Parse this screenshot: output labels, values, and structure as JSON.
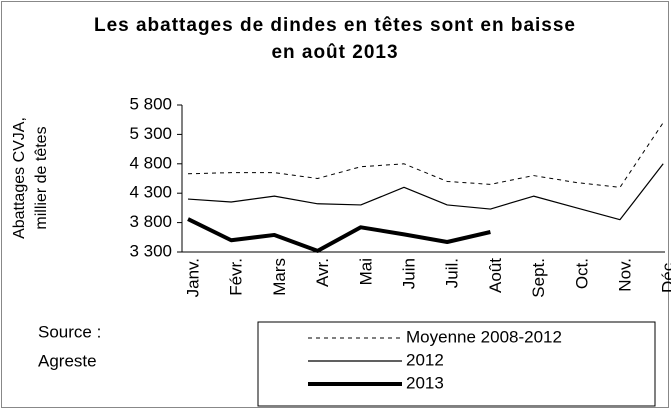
{
  "chart_data": {
    "type": "line",
    "title": "Les abattages de dindes en têtes sont en baisse en août 2013",
    "ylabel": [
      "Abattages CVJA,",
      "millier de têtes"
    ],
    "annotation": [
      "Source :",
      "Agreste"
    ],
    "categories": [
      "Janv.",
      "Févr.",
      "Mars",
      "Avr.",
      "Mai",
      "Juin",
      "Juil.",
      "Août",
      "Sept.",
      "Oct.",
      "Nov.",
      "Déc."
    ],
    "series": [
      {
        "name": "Moyenne 2008-2012",
        "color": "#000000",
        "line_style": "dashed",
        "values": [
          4630,
          4650,
          4650,
          4550,
          4750,
          4800,
          4500,
          4450,
          4600,
          4480,
          4400,
          5500
        ]
      },
      {
        "name": "2012",
        "color": "#000000",
        "line_style": "solid",
        "values": [
          4200,
          4150,
          4250,
          4120,
          4100,
          4400,
          4100,
          4030,
          4250,
          4050,
          3850,
          4800
        ]
      },
      {
        "name": "2013",
        "color": "#000000",
        "line_style": "bold",
        "values": [
          3860,
          3500,
          3590,
          3320,
          3720,
          3600,
          3470,
          3640,
          null,
          null,
          null,
          null
        ]
      }
    ],
    "ylim": [
      3300,
      5800
    ],
    "yticks": [
      {
        "value": 3300,
        "label": "3 300"
      },
      {
        "value": 3800,
        "label": "3 800"
      },
      {
        "value": 4300,
        "label": "4 300"
      },
      {
        "value": 4800,
        "label": "4 800"
      },
      {
        "value": 5300,
        "label": "5 300"
      },
      {
        "value": 5800,
        "label": "5 800"
      }
    ],
    "grid": false
  }
}
